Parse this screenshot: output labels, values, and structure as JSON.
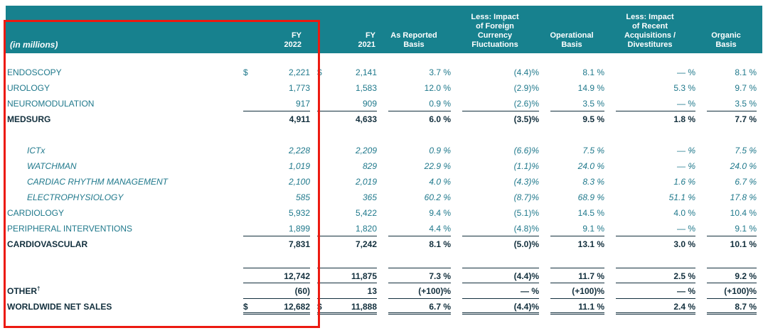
{
  "colors": {
    "header_teal": "#17818E",
    "text_teal": "#20798C",
    "text_dark": "#122F3D",
    "highlight_red": "#EC1A11"
  },
  "header": {
    "in_millions": "(in millions)",
    "columns": {
      "fy2022": "FY\n2022",
      "fy2021": "FY\n2021",
      "as_reported": "As Reported\nBasis",
      "fx": "Less: Impact\nof Foreign\nCurrency\nFluctuations",
      "operational": "Operational\nBasis",
      "acq": "Less: Impact\nof Recent\nAcquisitions /\nDivestitures",
      "organic": "Organic\nBasis"
    }
  },
  "rows": [
    {
      "label": "ENDOSCOPY",
      "style": "normal",
      "d1": "$",
      "v2022": "2,221",
      "d2": "$",
      "v2021": "2,141",
      "reported": "3.7 %",
      "fx": "(4.4)%",
      "operational": "8.1 %",
      "acq": "— %",
      "organic": "8.1 %"
    },
    {
      "label": "UROLOGY",
      "style": "normal",
      "d1": "",
      "v2022": "1,773",
      "d2": "",
      "v2021": "1,583",
      "reported": "12.0 %",
      "fx": "(2.9)%",
      "operational": "14.9 %",
      "acq": "5.3 %",
      "organic": "9.7 %"
    },
    {
      "label": "NEUROMODULATION",
      "style": "normal",
      "rule": "under",
      "d1": "",
      "v2022": "917",
      "d2": "",
      "v2021": "909",
      "reported": "0.9 %",
      "fx": "(2.6)%",
      "operational": "3.5 %",
      "acq": "— %",
      "organic": "3.5 %"
    },
    {
      "label": "MEDSURG",
      "style": "bold",
      "d1": "",
      "v2022": "4,911",
      "d2": "",
      "v2021": "4,633",
      "reported": "6.0 %",
      "fx": "(3.5)%",
      "operational": "9.5 %",
      "acq": "1.8 %",
      "organic": "7.7 %"
    },
    {
      "style": "spacer"
    },
    {
      "label": "ICTx",
      "style": "sub",
      "d1": "",
      "v2022": "2,228",
      "d2": "",
      "v2021": "2,209",
      "reported": "0.9 %",
      "fx": "(6.6)%",
      "operational": "7.5 %",
      "acq": "— %",
      "organic": "7.5 %"
    },
    {
      "label": "WATCHMAN",
      "style": "sub",
      "d1": "",
      "v2022": "1,019",
      "d2": "",
      "v2021": "829",
      "reported": "22.9 %",
      "fx": "(1.1)%",
      "operational": "24.0 %",
      "acq": "— %",
      "organic": "24.0 %"
    },
    {
      "label": "CARDIAC RHYTHM MANAGEMENT",
      "style": "sub",
      "d1": "",
      "v2022": "2,100",
      "d2": "",
      "v2021": "2,019",
      "reported": "4.0 %",
      "fx": "(4.3)%",
      "operational": "8.3 %",
      "acq": "1.6 %",
      "organic": "6.7 %"
    },
    {
      "label": "ELECTROPHYSIOLOGY",
      "style": "sub",
      "d1": "",
      "v2022": "585",
      "d2": "",
      "v2021": "365",
      "reported": "60.2 %",
      "fx": "(8.7)%",
      "operational": "68.9 %",
      "acq": "51.1 %",
      "organic": "17.8 %"
    },
    {
      "label": "CARDIOLOGY",
      "style": "normal",
      "d1": "",
      "v2022": "5,932",
      "d2": "",
      "v2021": "5,422",
      "reported": "9.4 %",
      "fx": "(5.1)%",
      "operational": "14.5 %",
      "acq": "4.0 %",
      "organic": "10.4 %"
    },
    {
      "label": "PERIPHERAL INTERVENTIONS",
      "style": "normal",
      "rule": "under",
      "d1": "",
      "v2022": "1,899",
      "d2": "",
      "v2021": "1,820",
      "reported": "4.4 %",
      "fx": "(4.8)%",
      "operational": "9.1 %",
      "acq": "— %",
      "organic": "9.1 %"
    },
    {
      "label": "CARDIOVASCULAR",
      "style": "bold",
      "d1": "",
      "v2022": "7,831",
      "d2": "",
      "v2021": "7,242",
      "reported": "8.1 %",
      "fx": "(5.0)%",
      "operational": "13.1 %",
      "acq": "3.0 %",
      "organic": "10.1 %"
    },
    {
      "style": "spacer"
    },
    {
      "label": "",
      "style": "bold",
      "rule": "topunder",
      "d1": "",
      "v2022": "12,742",
      "d2": "",
      "v2021": "11,875",
      "reported": "7.3 %",
      "fx": "(4.4)%",
      "operational": "11.7 %",
      "acq": "2.5 %",
      "organic": "9.2 %"
    },
    {
      "label": "OTHER",
      "sup": "†",
      "style": "bold",
      "rule": "under",
      "d1": "",
      "v2022": "(60)",
      "d2": "",
      "v2021": "13",
      "reported": "(+100)%",
      "fx": "— %",
      "operational": "(+100)%",
      "acq": "— %",
      "organic": "(+100)%"
    },
    {
      "label": "WORLDWIDE NET SALES",
      "style": "bold",
      "rule": "double",
      "d1": "$",
      "v2022": "12,682",
      "d2": "$",
      "v2021": "11,888",
      "reported": "6.7 %",
      "fx": "(4.4)%",
      "operational": "11.1 %",
      "acq": "2.4 %",
      "organic": "8.7 %"
    }
  ]
}
